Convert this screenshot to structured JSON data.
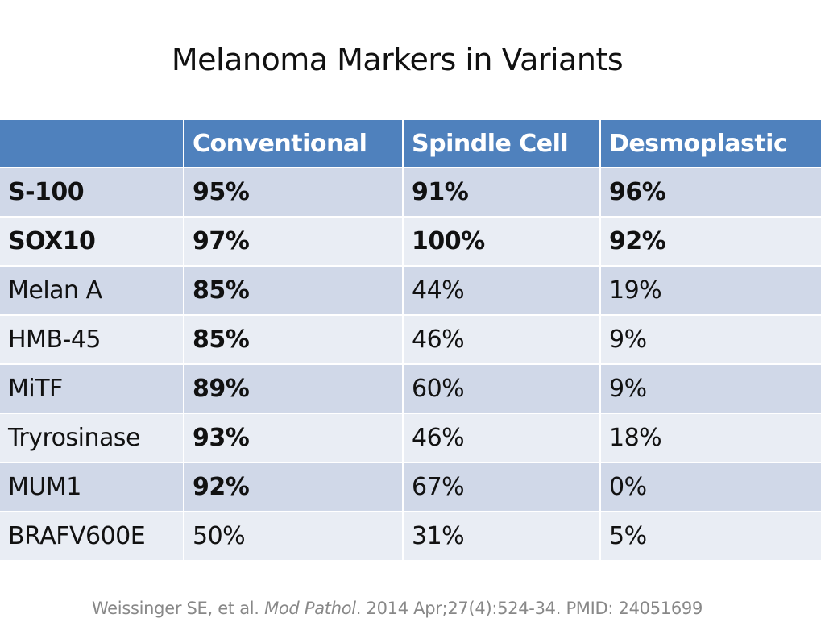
{
  "title": "Melanoma Markers in Variants",
  "table": {
    "headers": [
      "",
      "Conventional",
      "Spindle Cell",
      "Desmoplastic"
    ],
    "rows": [
      {
        "cells": [
          "S-100",
          "95%",
          "91%",
          "96%"
        ],
        "bold": [
          true,
          true,
          true,
          true
        ]
      },
      {
        "cells": [
          "SOX10",
          "97%",
          "100%",
          "92%"
        ],
        "bold": [
          true,
          true,
          true,
          true
        ]
      },
      {
        "cells": [
          "Melan A",
          "85%",
          "44%",
          "19%"
        ],
        "bold": [
          false,
          true,
          false,
          false
        ]
      },
      {
        "cells": [
          "HMB-45",
          "85%",
          "46%",
          "9%"
        ],
        "bold": [
          false,
          true,
          false,
          false
        ]
      },
      {
        "cells": [
          "MiTF",
          "89%",
          "60%",
          "9%"
        ],
        "bold": [
          false,
          true,
          false,
          false
        ]
      },
      {
        "cells": [
          "Tryrosinase",
          "93%",
          "46%",
          "18%"
        ],
        "bold": [
          false,
          true,
          false,
          false
        ]
      },
      {
        "cells": [
          "MUM1",
          "92%",
          "67%",
          "0%"
        ],
        "bold": [
          false,
          true,
          false,
          false
        ]
      },
      {
        "cells": [
          "BRAFV600E",
          "50%",
          "31%",
          "5%"
        ],
        "bold": [
          false,
          false,
          false,
          false
        ]
      }
    ]
  },
  "citation": {
    "authors": "Weissinger SE, et al. ",
    "journal": "Mod Pathol",
    "details": ". 2014 Apr;27(4):524-34. PMID: 24051699"
  },
  "colors": {
    "header": "#4f81bd",
    "row_odd": "#d0d8e8",
    "row_even": "#e9edf4"
  }
}
